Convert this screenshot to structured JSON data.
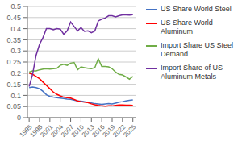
{
  "chart_data": {
    "type": "line",
    "x": [
      1995,
      1996,
      1997,
      1998,
      1999,
      2000,
      2001,
      2002,
      2003,
      2004,
      2005,
      2006,
      2007,
      2008,
      2009,
      2010,
      2011,
      2012,
      2013,
      2014,
      2015,
      2016,
      2017,
      2018,
      2019,
      2020,
      2021,
      2022,
      2023,
      2024,
      2025
    ],
    "series": [
      {
        "name": "US Share World Steel",
        "color": "#4472C4",
        "values": [
          0.135,
          0.138,
          0.135,
          0.13,
          0.118,
          0.103,
          0.095,
          0.092,
          0.09,
          0.088,
          0.086,
          0.083,
          0.082,
          0.079,
          0.075,
          0.074,
          0.072,
          0.068,
          0.066,
          0.063,
          0.062,
          0.06,
          0.062,
          0.063,
          0.062,
          0.065,
          0.07,
          0.072,
          0.075,
          0.078,
          0.08
        ]
      },
      {
        "name": "US Share World Aluminum",
        "color": "#FF0000",
        "values": [
          0.2,
          0.195,
          0.185,
          0.175,
          0.16,
          0.145,
          0.13,
          0.115,
          0.105,
          0.098,
          0.092,
          0.09,
          0.088,
          0.082,
          0.075,
          0.072,
          0.07,
          0.068,
          0.062,
          0.058,
          0.055,
          0.053,
          0.052,
          0.053,
          0.053,
          0.055,
          0.057,
          0.057,
          0.056,
          0.056,
          0.055
        ]
      },
      {
        "name": "Import Share US Steel\nDemand",
        "color": "#70AD47",
        "values": [
          0.205,
          0.21,
          0.21,
          0.215,
          0.218,
          0.22,
          0.218,
          0.22,
          0.222,
          0.235,
          0.24,
          0.235,
          0.245,
          0.248,
          0.215,
          0.228,
          0.225,
          0.222,
          0.22,
          0.225,
          0.265,
          0.23,
          0.23,
          0.228,
          0.22,
          0.205,
          0.195,
          0.192,
          0.183,
          0.173,
          0.185
        ]
      },
      {
        "name": "Import Share of US\nAluminum Metals",
        "color": "#7030A0",
        "values": [
          0.14,
          0.195,
          0.28,
          0.33,
          0.36,
          0.4,
          0.4,
          0.395,
          0.4,
          0.398,
          0.375,
          0.39,
          0.43,
          0.41,
          0.39,
          0.405,
          0.388,
          0.39,
          0.382,
          0.39,
          0.435,
          0.443,
          0.448,
          0.458,
          0.458,
          0.453,
          0.458,
          0.462,
          0.462,
          0.461,
          0.463
        ]
      }
    ],
    "xlim": [
      1994.5,
      2026
    ],
    "xticks": [
      1995,
      1998,
      2001,
      2004,
      2007,
      2010,
      2013,
      2016,
      2019,
      2022,
      2025
    ],
    "ylim": [
      0,
      0.5
    ],
    "yticks": [
      0,
      0.05,
      0.1,
      0.15,
      0.2,
      0.25,
      0.3,
      0.35,
      0.4,
      0.45,
      0.5
    ],
    "grid": true,
    "legend": "right"
  }
}
